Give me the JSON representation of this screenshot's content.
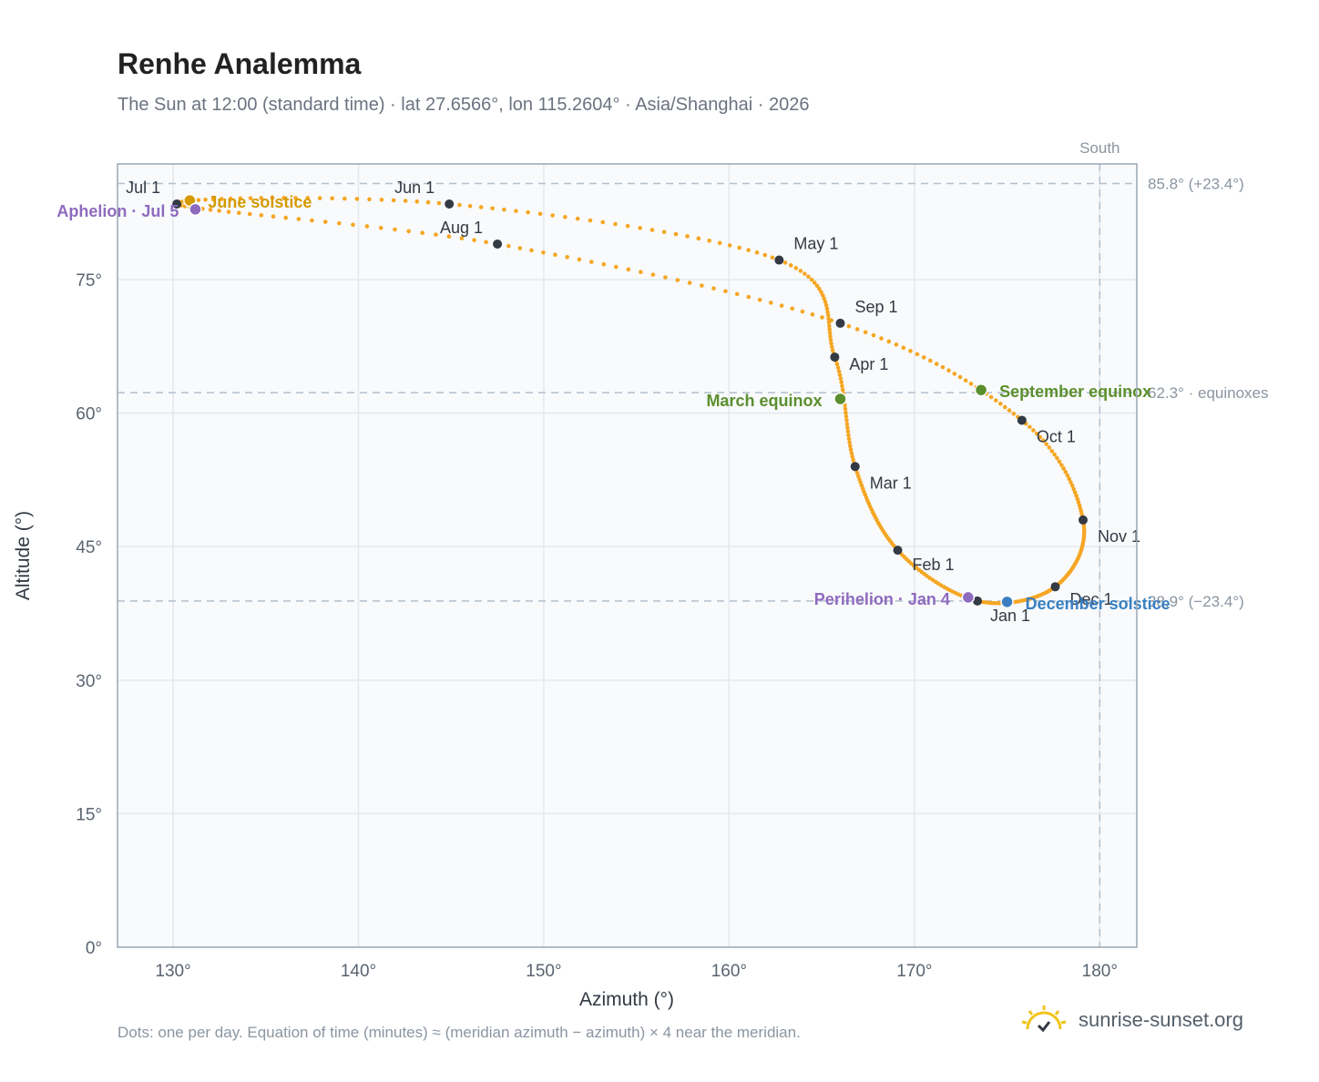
{
  "title": "Renhe Analemma",
  "subtitle": "The Sun at 12:00 (standard time) · lat 27.6566°, lon 115.2604° · Asia/Shanghai · 2026",
  "footnote": "Dots: one per day. Equation of time (minutes) ≈ (meridian azimuth − azimuth) × 4 near the meridian.",
  "brand": "sunrise-sunset.org",
  "colors": {
    "curve": "#f5a623",
    "month_dot": "#333a44",
    "equinox": "#5b8f2e",
    "solstice_june": "#d49a00",
    "solstice_december": "#3a7fc1",
    "apsis": "#8e6bbf",
    "grid": "#e3e9ef",
    "plot_bg": "#f8fafc",
    "axis_text": "#5a6470",
    "ref_line": "#b4bfcb",
    "logo": "#f0c419"
  },
  "chart_data": {
    "type": "scatter",
    "xlabel": "Azimuth (°)",
    "ylabel": "Altitude (°)",
    "xlim": [
      127,
      182
    ],
    "ylim": [
      0,
      88
    ],
    "xticks": [
      130,
      140,
      150,
      160,
      170,
      180
    ],
    "yticks": [
      0,
      15,
      30,
      45,
      60,
      75
    ],
    "xtick_labels": [
      "130°",
      "140°",
      "150°",
      "160°",
      "170°",
      "180°"
    ],
    "ytick_labels": [
      "0°",
      "15°",
      "30°",
      "45°",
      "60°",
      "75°"
    ],
    "grid": true,
    "month_points": [
      {
        "label": "Jan 1",
        "x": 173.4,
        "y": 38.9
      },
      {
        "label": "Feb 1",
        "x": 169.1,
        "y": 44.6
      },
      {
        "label": "Mar 1",
        "x": 166.8,
        "y": 54.0
      },
      {
        "label": "Apr 1",
        "x": 165.7,
        "y": 66.3
      },
      {
        "label": "May 1",
        "x": 162.7,
        "y": 77.2
      },
      {
        "label": "Jun 1",
        "x": 144.9,
        "y": 83.5
      },
      {
        "label": "Jul 1",
        "x": 130.2,
        "y": 83.5
      },
      {
        "label": "Aug 1",
        "x": 147.5,
        "y": 79.0
      },
      {
        "label": "Sep 1",
        "x": 166.0,
        "y": 70.1
      },
      {
        "label": "Oct 1",
        "x": 175.8,
        "y": 59.2
      },
      {
        "label": "Nov 1",
        "x": 179.1,
        "y": 48.0
      },
      {
        "label": "Dec 1",
        "x": 177.6,
        "y": 40.5
      }
    ],
    "events": [
      {
        "label": "March equinox",
        "x": 166.0,
        "y": 61.6,
        "kind": "equinox"
      },
      {
        "label": "September equinox",
        "x": 173.6,
        "y": 62.6,
        "kind": "equinox"
      },
      {
        "label": "June solstice",
        "x": 130.9,
        "y": 83.9,
        "kind": "solstice_june"
      },
      {
        "label": "December solstice",
        "x": 175.0,
        "y": 38.8,
        "kind": "solstice_december"
      },
      {
        "label": "Perihelion · Jan 4",
        "x": 172.9,
        "y": 39.3,
        "kind": "apsis"
      },
      {
        "label": "Aphelion · Jul 5",
        "x": 131.2,
        "y": 82.9,
        "kind": "apsis"
      }
    ],
    "reference_lines": [
      {
        "value": 85.8,
        "label": "85.8° (+23.4°)"
      },
      {
        "value": 62.3,
        "label": "62.3° · equinoxes"
      },
      {
        "value": 38.9,
        "label": "38.9° (−23.4°)"
      }
    ],
    "meridian": {
      "value": 180,
      "label": "South"
    }
  }
}
